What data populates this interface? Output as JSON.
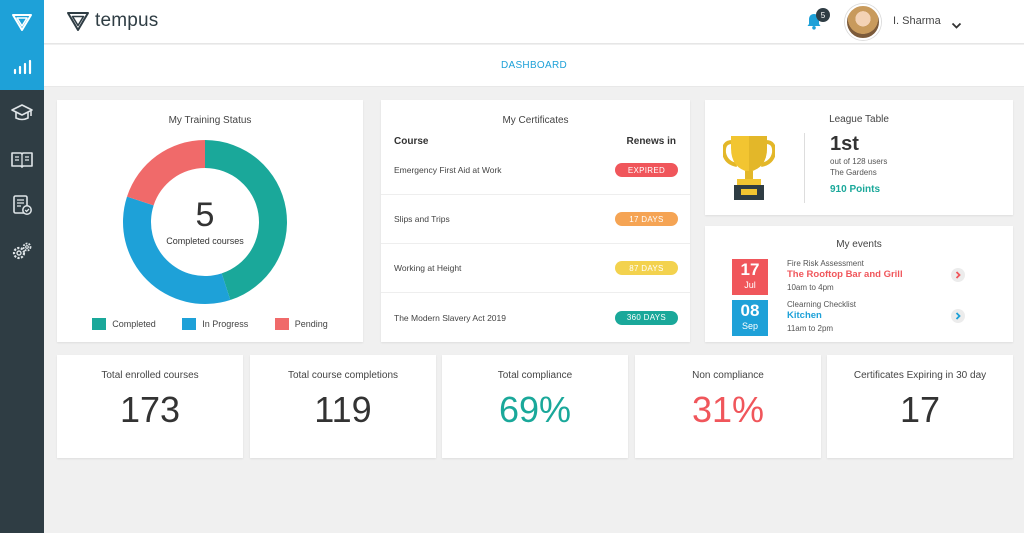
{
  "brand": {
    "name": "tempus"
  },
  "header": {
    "notification_count": "5",
    "user_name": "I. Sharma"
  },
  "subnav": {
    "active": "DASHBOARD"
  },
  "training_status": {
    "title": "My Training Status",
    "center_value": "5",
    "center_label": "Completed courses",
    "legend": [
      {
        "label": "Completed",
        "color": "#1aa89a"
      },
      {
        "label": "In Progress",
        "color": "#1ea1d8"
      },
      {
        "label": "Pending",
        "color": "#f06a6a"
      }
    ],
    "chart_data": {
      "type": "pie",
      "categories": [
        "Completed",
        "In Progress",
        "Pending"
      ],
      "values": [
        45,
        35,
        20
      ]
    }
  },
  "certificates": {
    "title": "My Certificates",
    "col_course": "Course",
    "col_renews": "Renews in",
    "rows": [
      {
        "name": "Emergency First Aid at Work",
        "status": "EXPIRED",
        "color": "#f0565b"
      },
      {
        "name": "Slips and Trips",
        "status": "17 DAYS",
        "color": "#f5a454"
      },
      {
        "name": "Working at Height",
        "status": "87 DAYS",
        "color": "#f3d24e"
      },
      {
        "name": "The Modern Slavery Act 2019",
        "status": "360 DAYS",
        "color": "#1aa89a"
      }
    ]
  },
  "league": {
    "title": "League Table",
    "rank": "1st",
    "of_users": "out of 128 users",
    "group": "The Gardens",
    "points": "910 Points"
  },
  "events": {
    "title": "My events",
    "items": [
      {
        "day": "17",
        "month": "Jul",
        "type": "Fire Risk Assessment",
        "title": "The Rooftop Bar and Grill",
        "time": "10am to 4pm",
        "color": "#f0565b"
      },
      {
        "day": "08",
        "month": "Sep",
        "type": "Clearning Checklist",
        "title": "Kitchen",
        "time": "11am to 2pm",
        "color": "#1ea1d8"
      }
    ]
  },
  "stats": [
    {
      "label": "Total enrolled courses",
      "value": "173",
      "color": "#333333"
    },
    {
      "label": "Total course completions",
      "value": "119",
      "color": "#333333"
    },
    {
      "label": "Total compliance",
      "value": "69%",
      "color": "#1aa89a"
    },
    {
      "label": "Non compliance",
      "value": "31%",
      "color": "#f0565b"
    },
    {
      "label": "Certificates Expiring in 30 day",
      "value": "17",
      "color": "#333333"
    }
  ]
}
